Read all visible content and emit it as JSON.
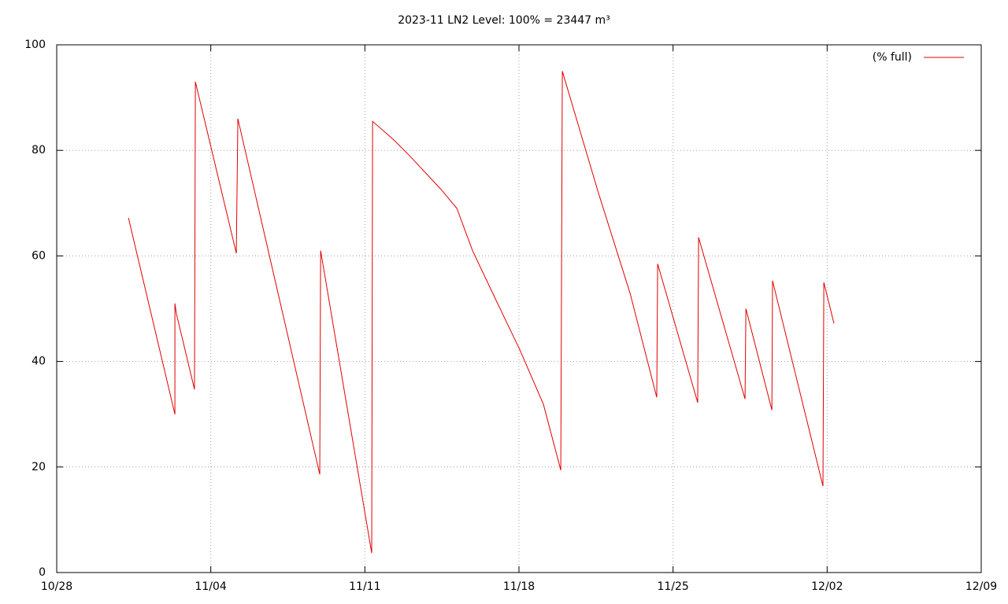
{
  "chart_data": {
    "type": "line",
    "title": "2023-11 LN2 Level: 100% = 23447 m³",
    "x": [
      3.26,
      5.37,
      5.37,
      5.44,
      6.26,
      6.3,
      8.16,
      8.23,
      11.95,
      11.99,
      14.31,
      14.35,
      15.31,
      16.03,
      17.46,
      18.18,
      18.89,
      19.96,
      21.04,
      22.11,
      22.9,
      22.97,
      24.62,
      26.05,
      27.26,
      27.3,
      29.12,
      29.16,
      31.27,
      31.31,
      32.49,
      32.52,
      34.81,
      34.85,
      35.31
    ],
    "series": [
      {
        "name": "(% full)",
        "color": "#e00000",
        "values": [
          67.2,
          30.0,
          51.0,
          49.0,
          34.7,
          93.0,
          60.5,
          86.0,
          18.6,
          61.0,
          3.7,
          85.5,
          82.0,
          79.0,
          72.6,
          69.0,
          61.0,
          51.6,
          42.2,
          31.9,
          19.4,
          95.0,
          71.8,
          52.9,
          33.2,
          58.5,
          32.2,
          63.5,
          32.9,
          50.0,
          30.8,
          55.3,
          16.4,
          55.0,
          47.2
        ]
      }
    ],
    "xlim": [
      0,
      42
    ],
    "xticks": [
      {
        "value": 0,
        "label": "10/28"
      },
      {
        "value": 7,
        "label": "11/04"
      },
      {
        "value": 14,
        "label": "11/11"
      },
      {
        "value": 21,
        "label": "11/18"
      },
      {
        "value": 28,
        "label": "11/25"
      },
      {
        "value": 35,
        "label": "12/02"
      },
      {
        "value": 42,
        "label": "12/09"
      }
    ],
    "ylim": [
      0,
      100
    ],
    "yticks": [
      0,
      20,
      40,
      60,
      80,
      100
    ],
    "grid": true,
    "legend": "top-right"
  }
}
